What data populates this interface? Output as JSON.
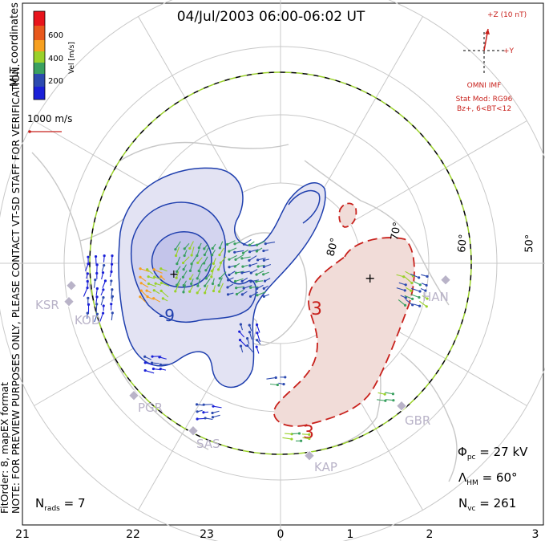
{
  "title": "04/Jul/2003 06:00-06:02 UT",
  "colorbar": {
    "label": "Vel [m/s]",
    "ticks": [
      "600",
      "400",
      "200"
    ],
    "colors": [
      "#e8141c",
      "#f7a020",
      "#9ad12a",
      "#3aa060",
      "#2c4ab0",
      "#1a20d8"
    ]
  },
  "side_notes": {
    "mlt_coordinates": "MLT coordinates",
    "preview_note": "NOTE: FOR PREVIEW PURPOSES ONLY, PLEASE CONTACT VT-SD STAFF FOR VERIFICATION.",
    "fit_order": "FitOrder: 8, mapEX format"
  },
  "scale_vector_label": "1000 m/s",
  "imf": {
    "z_label": "+Z (10 nT)",
    "y_label": "+Y",
    "source": "OMNI IMF",
    "stat_mod_line1": "Stat Mod: RG96",
    "stat_mod_line2": "Bz+, 6<BT<12"
  },
  "latitude_labels": [
    "80°",
    "70°",
    "60°",
    "50°"
  ],
  "mlt_ticks": [
    "21",
    "22",
    "23",
    "0",
    "1",
    "2",
    "3"
  ],
  "stations": [
    "KSR",
    "KOD",
    "PGR",
    "SAS",
    "KAP",
    "GBR",
    "HAN"
  ],
  "contour_labels": [
    "-9",
    "3",
    "3"
  ],
  "stats": {
    "phi_pc_sym": "Φ",
    "phi_pc_sub": "pc",
    "phi_pc_value": " = 27 kV",
    "lambda_hm_sym": "Λ",
    "lambda_hm_sub": "HM",
    "lambda_hm_value": " = 60°",
    "n_vc_sym": "N",
    "n_vc_sub": "vc",
    "n_vc_value": " = 261",
    "n_rads_sym": "N",
    "n_rads_sub": "rads",
    "n_rads_value": " = 7"
  },
  "map_colors": {
    "negative_fill": "#e3e3f3",
    "negative_core": "#c3c4ea",
    "negative_line": "#1f3fae",
    "positive_fill": "#f1dcd8",
    "positive_line": "#c8211c",
    "coastline": "#c8c8c8",
    "grid": "#c8c8c8",
    "hmb": "#9ad12a"
  }
}
